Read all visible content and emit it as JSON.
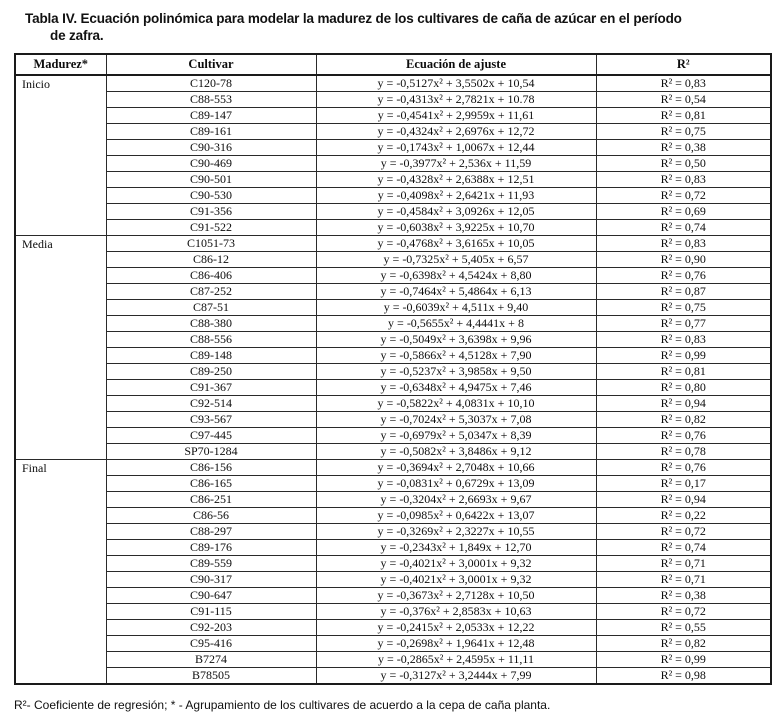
{
  "title": {
    "line1": "Tabla IV. Ecuación polinómica para modelar la madurez de los cultivares de caña de azúcar en el período",
    "line2": "de zafra."
  },
  "table": {
    "headers": [
      "Madurez*",
      "Cultivar",
      "Ecuación de ajuste",
      "R²"
    ],
    "groups": [
      {
        "label": "Inicio",
        "rows": [
          {
            "cultivar": "C120-78",
            "equation": "y = -0,5127x² + 3,5502x + 10,54",
            "r2": "R² = 0,83"
          },
          {
            "cultivar": "C88-553",
            "equation": "y = -0,4313x² + 2,7821x + 10.78",
            "r2": "R² = 0,54"
          },
          {
            "cultivar": "C89-147",
            "equation": "y = -0,4541x² + 2,9959x + 11,61",
            "r2": "R² = 0,81"
          },
          {
            "cultivar": "C89-161",
            "equation": "y = -0,4324x² + 2,6976x + 12,72",
            "r2": "R² = 0,75"
          },
          {
            "cultivar": "C90-316",
            "equation": "y = -0,1743x² + 1,0067x + 12,44",
            "r2": "R² = 0,38"
          },
          {
            "cultivar": "C90-469",
            "equation": "y = -0,3977x² + 2,536x + 11,59",
            "r2": "R² = 0,50"
          },
          {
            "cultivar": "C90-501",
            "equation": "y = -0,4328x² + 2,6388x + 12,51",
            "r2": "R² = 0,83"
          },
          {
            "cultivar": "C90-530",
            "equation": "y = -0,4098x² + 2,6421x + 11,93",
            "r2": "R² = 0,72"
          },
          {
            "cultivar": "C91-356",
            "equation": "y = -0,4584x² + 3,0926x + 12,05",
            "r2": "R² = 0,69"
          },
          {
            "cultivar": "C91-522",
            "equation": "y = -0,6038x² + 3,9225x + 10,70",
            "r2": "R² = 0,74"
          }
        ]
      },
      {
        "label": "Media",
        "rows": [
          {
            "cultivar": "C1051-73",
            "equation": "y = -0,4768x² + 3,6165x + 10,05",
            "r2": "R² = 0,83"
          },
          {
            "cultivar": "C86-12",
            "equation": "y = -0,7325x² + 5,405x + 6,57",
            "r2": "R² = 0,90"
          },
          {
            "cultivar": "C86-406",
            "equation": "y = -0,6398x² + 4,5424x + 8,80",
            "r2": "R² = 0,76"
          },
          {
            "cultivar": "C87-252",
            "equation": "y = -0,7464x² + 5,4864x + 6,13",
            "r2": "R² = 0,87"
          },
          {
            "cultivar": "C87-51",
            "equation": "y = -0,6039x² + 4,511x + 9,40",
            "r2": "R² = 0,75"
          },
          {
            "cultivar": "C88-380",
            "equation": "y = -0,5655x² + 4,4441x + 8",
            "r2": "R² = 0,77"
          },
          {
            "cultivar": "C88-556",
            "equation": "y = -0,5049x² + 3,6398x + 9,96",
            "r2": "R² = 0,83"
          },
          {
            "cultivar": "C89-148",
            "equation": "y = -0,5866x² + 4,5128x + 7,90",
            "r2": "R² = 0,99"
          },
          {
            "cultivar": "C89-250",
            "equation": "y = -0,5237x² + 3,9858x + 9,50",
            "r2": "R² = 0,81"
          },
          {
            "cultivar": "C91-367",
            "equation": "y = -0,6348x² + 4,9475x + 7,46",
            "r2": "R² = 0,80"
          },
          {
            "cultivar": "C92-514",
            "equation": "y = -0,5822x² + 4,0831x + 10,10",
            "r2": "R² = 0,94"
          },
          {
            "cultivar": "C93-567",
            "equation": "y = -0,7024x² + 5,3037x + 7,08",
            "r2": "R² = 0,82"
          },
          {
            "cultivar": "C97-445",
            "equation": "y = -0,6979x² + 5,0347x + 8,39",
            "r2": "R² = 0,76"
          },
          {
            "cultivar": "SP70-1284",
            "equation": "y = -0,5082x² + 3,8486x + 9,12",
            "r2": "R² = 0,78"
          }
        ]
      },
      {
        "label": "Final",
        "rows": [
          {
            "cultivar": "C86-156",
            "equation": "y = -0,3694x² + 2,7048x + 10,66",
            "r2": "R² = 0,76"
          },
          {
            "cultivar": "C86-165",
            "equation": "y = -0,0831x² + 0,6729x + 13,09",
            "r2": "R² = 0,17"
          },
          {
            "cultivar": "C86-251",
            "equation": "y = -0,3204x² + 2,6693x + 9,67",
            "r2": "R² = 0,94"
          },
          {
            "cultivar": "C86-56",
            "equation": "y = -0,0985x² + 0,6422x + 13,07",
            "r2": "R² = 0,22"
          },
          {
            "cultivar": "C88-297",
            "equation": "y = -0,3269x² + 2,3227x + 10,55",
            "r2": "R² = 0,72"
          },
          {
            "cultivar": "C89-176",
            "equation": "y = -0,2343x² + 1,849x + 12,70",
            "r2": "R² = 0,74"
          },
          {
            "cultivar": "C89-559",
            "equation": "y = -0,4021x² + 3,0001x + 9,32",
            "r2": "R² = 0,71"
          },
          {
            "cultivar": "C90-317",
            "equation": "y = -0,4021x² + 3,0001x + 9,32",
            "r2": "R² = 0,71"
          },
          {
            "cultivar": "C90-647",
            "equation": "y = -0,3673x² + 2,7128x + 10,50",
            "r2": "R² = 0,38"
          },
          {
            "cultivar": "C91-115",
            "equation": "y = -0,376x² + 2,8583x + 10,63",
            "r2": "R² = 0,72"
          },
          {
            "cultivar": "C92-203",
            "equation": "y = -0,2415x² + 2,0533x + 12,22",
            "r2": "R² = 0,55"
          },
          {
            "cultivar": "C95-416",
            "equation": "y = -0,2698x² + 1,9641x + 12,48",
            "r2": "R² = 0,82"
          },
          {
            "cultivar": "B7274",
            "equation": "y = -0,2865x² + 2,4595x + 11,11",
            "r2": "R² = 0,99"
          },
          {
            "cultivar": "B78505",
            "equation": "y = -0,3127x² + 3,2444x + 7,99",
            "r2": "R² = 0,98"
          }
        ]
      }
    ]
  },
  "footnote": "R²- Coeficiente de regresión; * - Agrupamiento de los cultivares de acuerdo a la cepa de caña planta."
}
